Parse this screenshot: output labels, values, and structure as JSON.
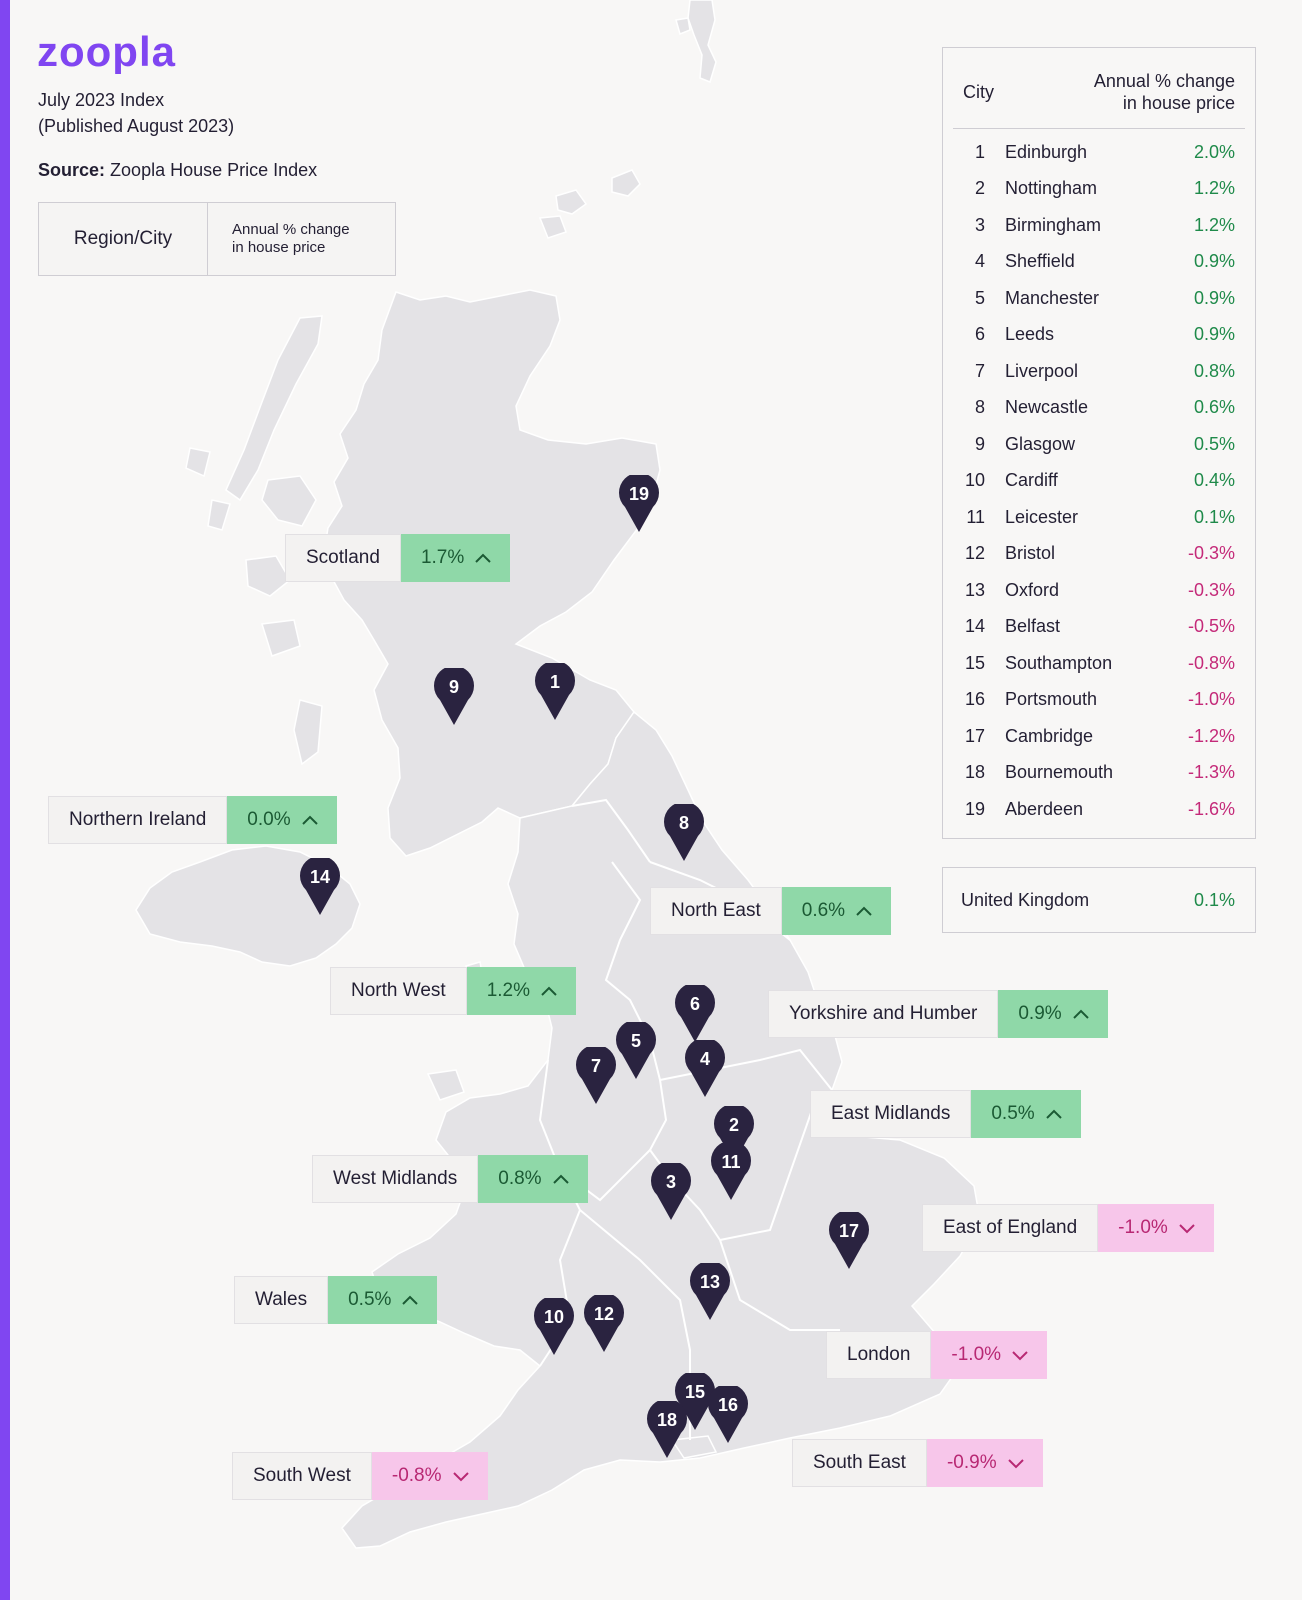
{
  "brand": {
    "logo_text": "zoopla",
    "accent_color": "#8046f1"
  },
  "header": {
    "index_title": "July 2023 Index",
    "published": "(Published August 2023)",
    "source_label": "Source:",
    "source_value": "Zoopla House Price Index"
  },
  "legend": {
    "region_city": "Region/City",
    "change_line1": "Annual % change",
    "change_line2": "in house price"
  },
  "regions": [
    {
      "name": "Scotland",
      "value": "1.7%",
      "direction": "up"
    },
    {
      "name": "Northern Ireland",
      "value": "0.0%",
      "direction": "up"
    },
    {
      "name": "North East",
      "value": "0.6%",
      "direction": "up"
    },
    {
      "name": "North West",
      "value": "1.2%",
      "direction": "up"
    },
    {
      "name": "Yorkshire and Humber",
      "value": "0.9%",
      "direction": "up"
    },
    {
      "name": "East Midlands",
      "value": "0.5%",
      "direction": "up"
    },
    {
      "name": "West Midlands",
      "value": "0.8%",
      "direction": "up"
    },
    {
      "name": "East of England",
      "value": "-1.0%",
      "direction": "down"
    },
    {
      "name": "Wales",
      "value": "0.5%",
      "direction": "up"
    },
    {
      "name": "London",
      "value": "-1.0%",
      "direction": "down"
    },
    {
      "name": "South West",
      "value": "-0.8%",
      "direction": "down"
    },
    {
      "name": "South East",
      "value": "-0.9%",
      "direction": "down"
    }
  ],
  "city_table": {
    "header_city": "City",
    "header_change_line1": "Annual % change",
    "header_change_line2": "in house price",
    "rows": [
      {
        "rank": "1",
        "city": "Edinburgh",
        "value": "2.0%",
        "direction": "up"
      },
      {
        "rank": "2",
        "city": "Nottingham",
        "value": "1.2%",
        "direction": "up"
      },
      {
        "rank": "3",
        "city": "Birmingham",
        "value": "1.2%",
        "direction": "up"
      },
      {
        "rank": "4",
        "city": "Sheffield",
        "value": "0.9%",
        "direction": "up"
      },
      {
        "rank": "5",
        "city": "Manchester",
        "value": "0.9%",
        "direction": "up"
      },
      {
        "rank": "6",
        "city": "Leeds",
        "value": "0.9%",
        "direction": "up"
      },
      {
        "rank": "7",
        "city": "Liverpool",
        "value": "0.8%",
        "direction": "up"
      },
      {
        "rank": "8",
        "city": "Newcastle",
        "value": "0.6%",
        "direction": "up"
      },
      {
        "rank": "9",
        "city": "Glasgow",
        "value": "0.5%",
        "direction": "up"
      },
      {
        "rank": "10",
        "city": "Cardiff",
        "value": "0.4%",
        "direction": "up"
      },
      {
        "rank": "11",
        "city": "Leicester",
        "value": "0.1%",
        "direction": "up"
      },
      {
        "rank": "12",
        "city": "Bristol",
        "value": "-0.3%",
        "direction": "down"
      },
      {
        "rank": "13",
        "city": "Oxford",
        "value": "-0.3%",
        "direction": "down"
      },
      {
        "rank": "14",
        "city": "Belfast",
        "value": "-0.5%",
        "direction": "down"
      },
      {
        "rank": "15",
        "city": "Southampton",
        "value": "-0.8%",
        "direction": "down"
      },
      {
        "rank": "16",
        "city": "Portsmouth",
        "value": "-1.0%",
        "direction": "down"
      },
      {
        "rank": "17",
        "city": "Cambridge",
        "value": "-1.2%",
        "direction": "down"
      },
      {
        "rank": "18",
        "city": "Bournemouth",
        "value": "-1.3%",
        "direction": "down"
      },
      {
        "rank": "19",
        "city": "Aberdeen",
        "value": "-1.6%",
        "direction": "down"
      }
    ]
  },
  "uk_total": {
    "name": "United Kingdom",
    "value": "0.1%",
    "direction": "up"
  },
  "pins": [
    "19",
    "9",
    "1",
    "8",
    "14",
    "6",
    "5",
    "4",
    "7",
    "2",
    "11",
    "3",
    "17",
    "13",
    "10",
    "12",
    "15",
    "16",
    "18"
  ],
  "colors": {
    "up_bg": "#8fd8a8",
    "down_bg": "#f7c6ea",
    "up_text": "#1f8a4a",
    "down_text": "#c42a79",
    "pin": "#2a2340"
  }
}
